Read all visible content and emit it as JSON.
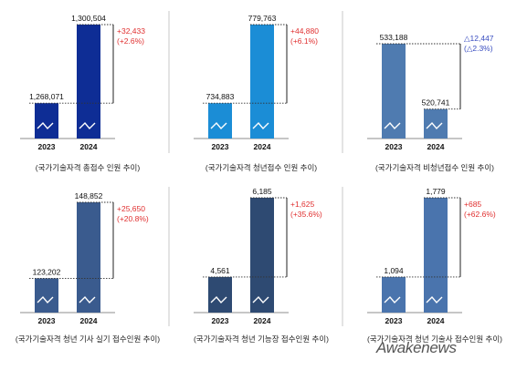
{
  "charts": [
    {
      "caption": "(국가기술자격 총접수 인원 추이)"
    },
    {
      "caption": "(국가기술자격 청년접수 인원 추이)"
    },
    {
      "caption": "(국가기술자격 비청년접수 인원 추이)"
    },
    {
      "caption": "(국가기술자격 청년 기사 실기 접수인원 추이)"
    },
    {
      "caption": "(국가기술자격 청년 기능장 접수인원 추이)"
    },
    {
      "caption": "(국가기술자격 청년 기술사 접수인원 추이)"
    }
  ],
  "watermark": "Awakenews",
  "colors": {
    "increase": "#e03030",
    "decrease": "#3a4ec0",
    "chart1": "#0e2d95",
    "chart2": "#1b8dd6",
    "chart3": "#4f7bb0",
    "chart4": "#3a5b8e",
    "chart5": "#2e4a72",
    "chart6": "#4a74ad"
  },
  "chart_data": [
    {
      "type": "bar",
      "categories": [
        "2023",
        "2024"
      ],
      "values": [
        1268071,
        1300504
      ],
      "value_labels": [
        "1,268,071",
        "1,300,504"
      ],
      "change_label": "+32,433",
      "change_pct": "(+2.6%)",
      "direction": "up"
    },
    {
      "type": "bar",
      "categories": [
        "2023",
        "2024"
      ],
      "values": [
        734883,
        779763
      ],
      "value_labels": [
        "734,883",
        "779,763"
      ],
      "change_label": "+44,880",
      "change_pct": "(+6.1%)",
      "direction": "up"
    },
    {
      "type": "bar",
      "categories": [
        "2023",
        "2024"
      ],
      "values": [
        533188,
        520741
      ],
      "value_labels": [
        "533,188",
        "520,741"
      ],
      "change_label": "△12,447",
      "change_pct": "(△2.3%)",
      "direction": "down"
    },
    {
      "type": "bar",
      "categories": [
        "2023",
        "2024"
      ],
      "values": [
        123202,
        148852
      ],
      "value_labels": [
        "123,202",
        "148,852"
      ],
      "change_label": "+25,650",
      "change_pct": "(+20.8%)",
      "direction": "up"
    },
    {
      "type": "bar",
      "categories": [
        "2023",
        "2024"
      ],
      "values": [
        4561,
        6185
      ],
      "value_labels": [
        "4,561",
        "6,185"
      ],
      "change_label": "+1,625",
      "change_pct": "(+35.6%)",
      "direction": "up"
    },
    {
      "type": "bar",
      "categories": [
        "2023",
        "2024"
      ],
      "values": [
        1094,
        1779
      ],
      "value_labels": [
        "1,094",
        "1,779"
      ],
      "change_label": "+685",
      "change_pct": "(+62.6%)",
      "direction": "up"
    }
  ]
}
